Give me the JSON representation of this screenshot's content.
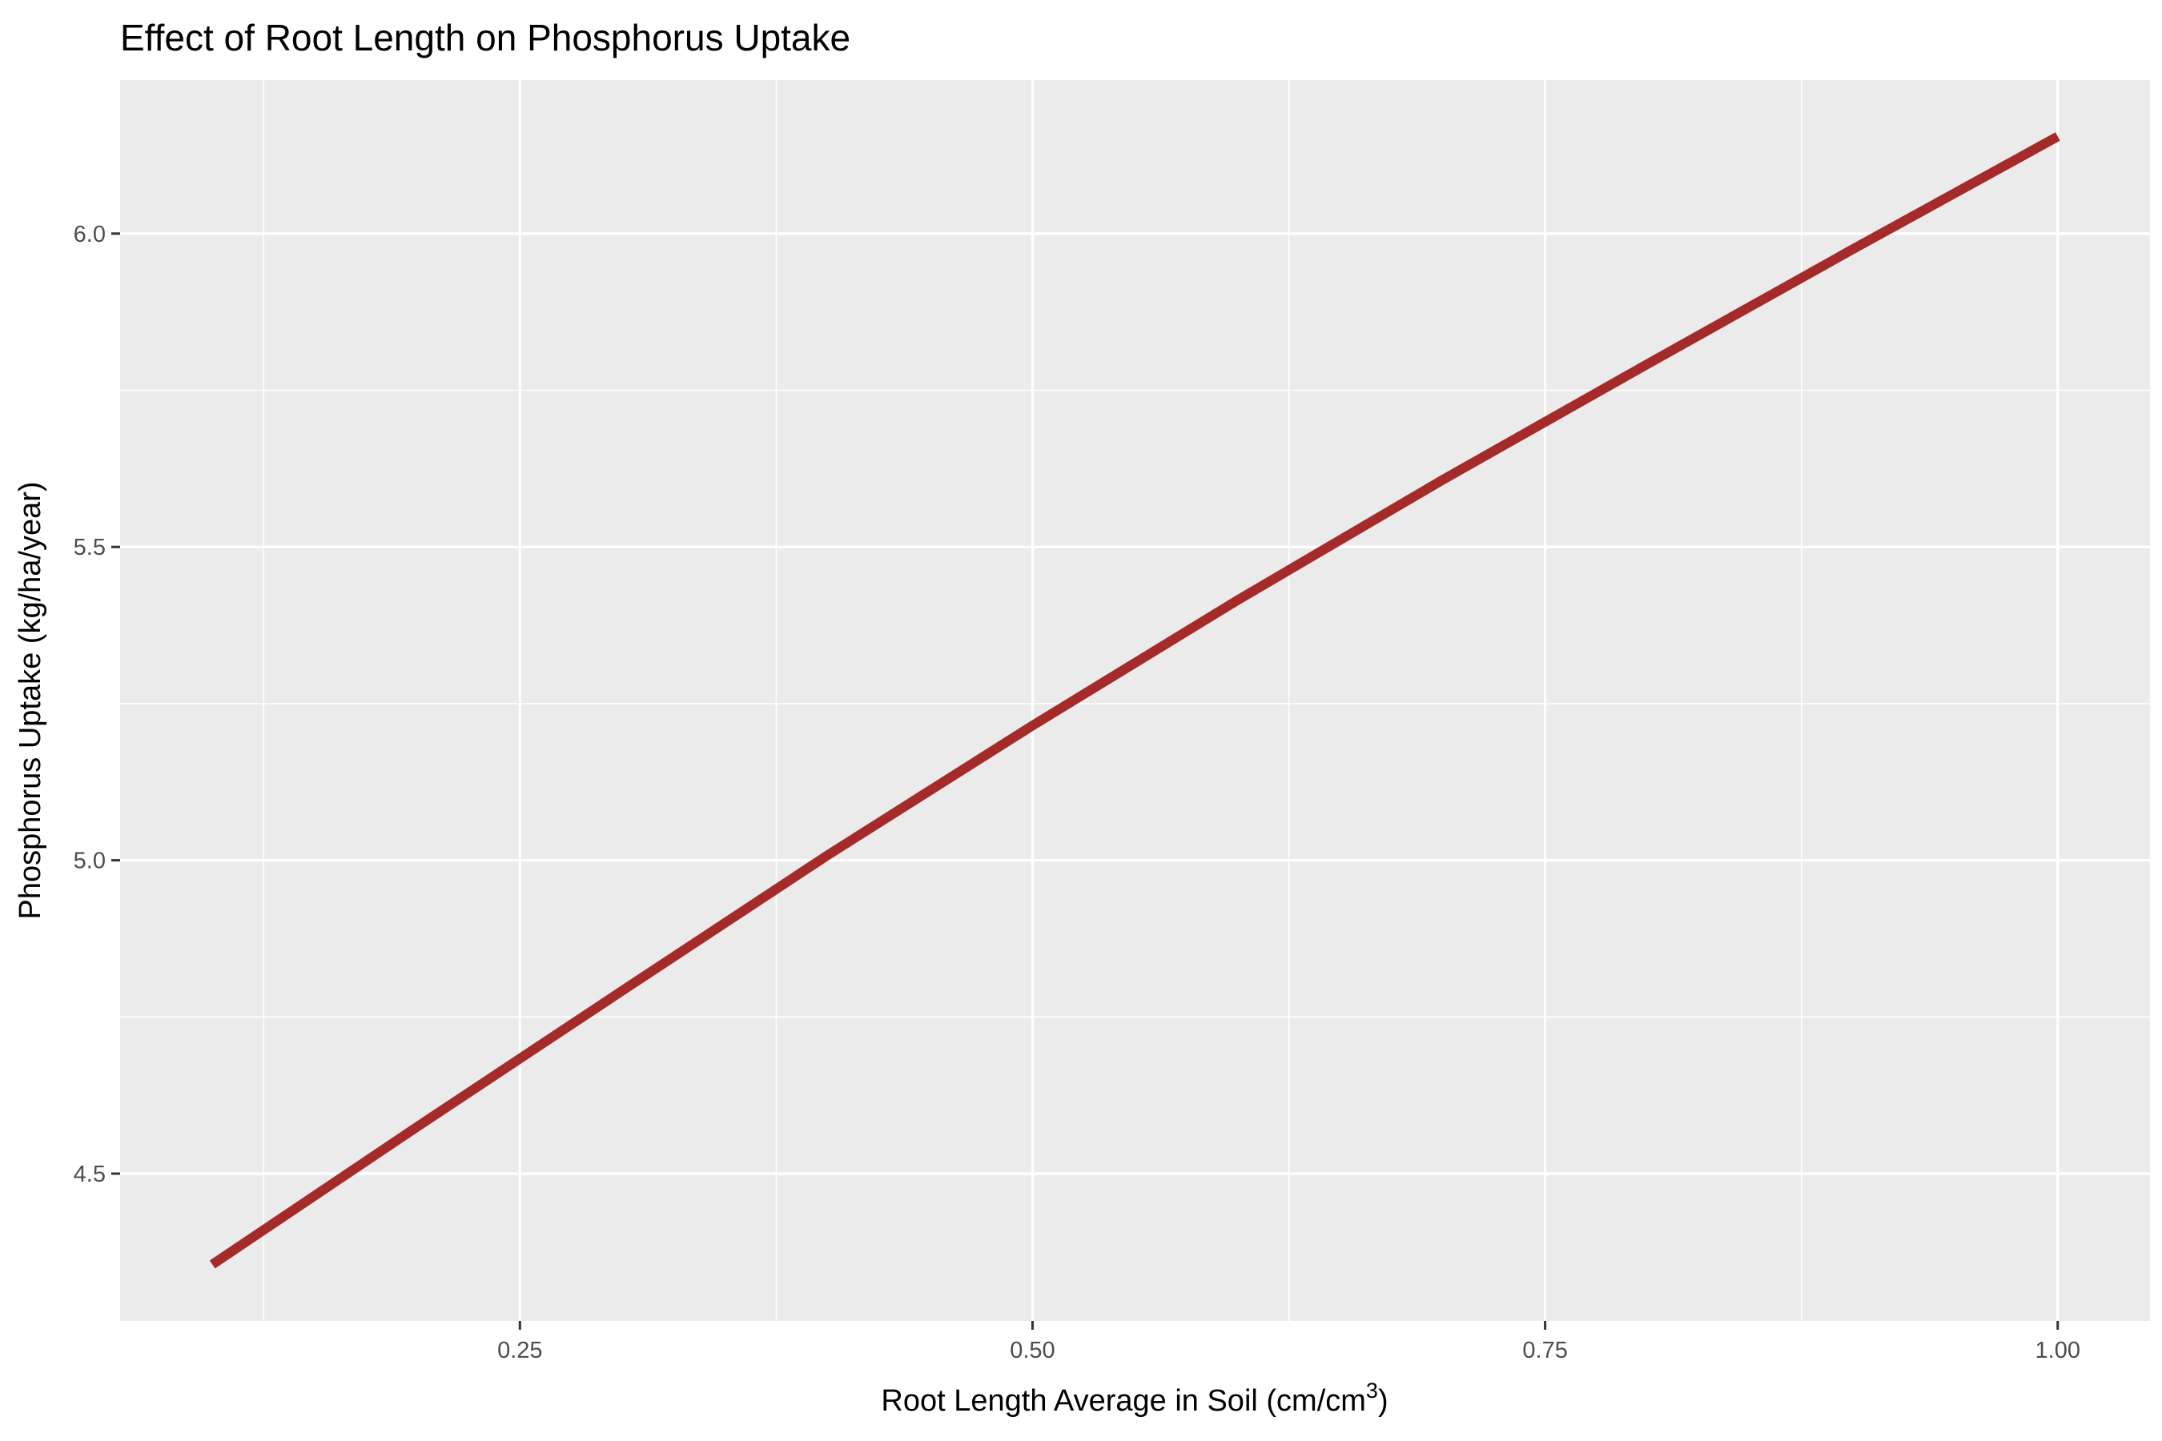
{
  "chart_data": {
    "type": "line",
    "title": "Effect of Root Length on Phosphorus Uptake",
    "xlabel": "Root Length Average in Soil (cm/cm",
    "xlabel_superscript": "3",
    "xlabel_suffix": ")",
    "ylabel": "Phosphorus Uptake (kg/ha/year)",
    "xlim": [
      0.055,
      1.045
    ],
    "ylim": [
      4.265,
      6.245
    ],
    "x_ticks": [
      0.25,
      0.5,
      0.75,
      1.0
    ],
    "x_tick_labels": [
      "0.25",
      "0.50",
      "0.75",
      "1.00"
    ],
    "x_minor_ticks": [
      0.125,
      0.375,
      0.625,
      0.875
    ],
    "y_ticks": [
      4.5,
      5.0,
      5.5,
      6.0
    ],
    "y_tick_labels": [
      "4.5",
      "5.0",
      "5.5",
      "6.0"
    ],
    "y_minor_ticks": [
      4.75,
      5.25,
      5.75
    ],
    "grid": true,
    "legend": "none",
    "colors": {
      "line": "#A52A2A",
      "panel": "#EBEBEB",
      "grid": "#FFFFFF"
    },
    "x": [
      0.1,
      0.2,
      0.3,
      0.4,
      0.5,
      0.6,
      0.7,
      0.8,
      0.9,
      1.0
    ],
    "y": [
      4.355,
      4.575,
      4.792,
      5.008,
      5.215,
      5.415,
      5.607,
      5.792,
      5.975,
      6.155
    ]
  }
}
